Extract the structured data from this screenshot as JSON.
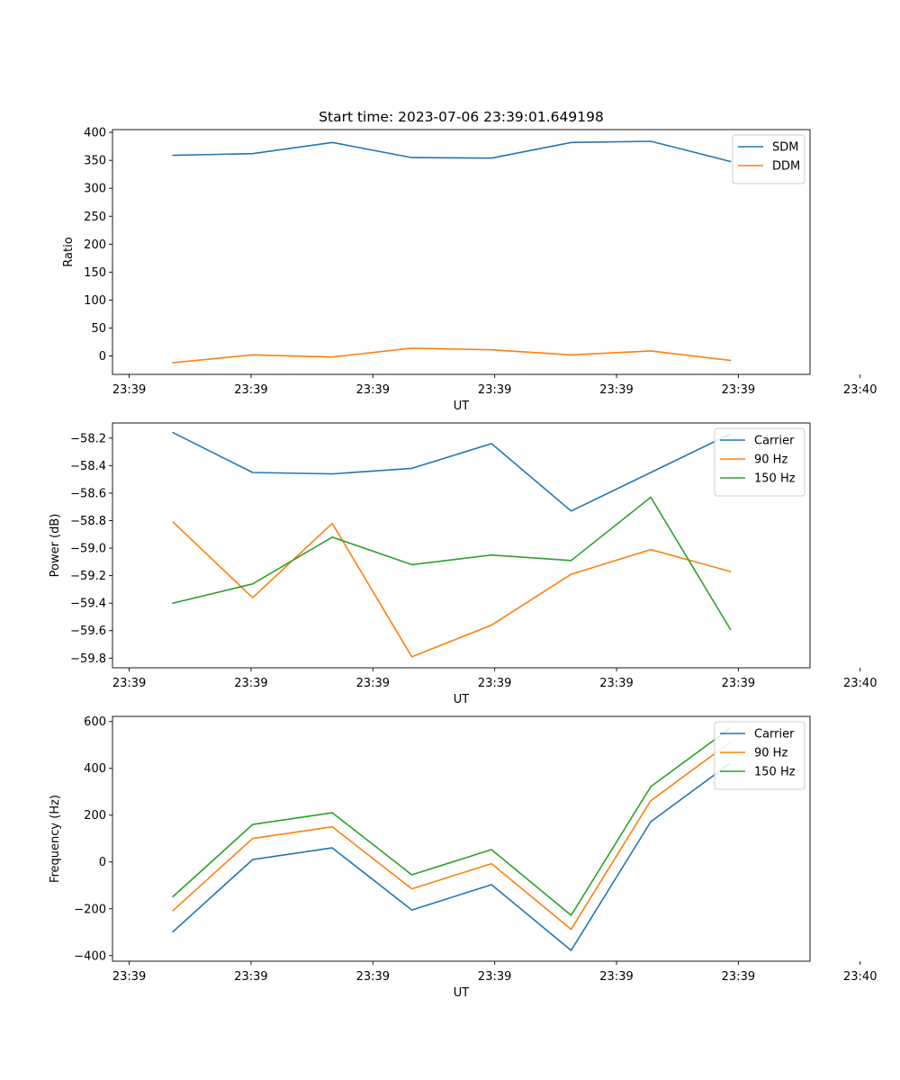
{
  "chart_data": [
    {
      "type": "line",
      "title": "Start time: 2023-07-06 23:39:01.649198",
      "xlabel": "UT",
      "ylabel": "Ratio",
      "legend_loc": "upper right",
      "x": [
        1,
        2,
        3,
        4,
        5,
        6,
        7,
        8
      ],
      "xlim": [
        0.24,
        9.0
      ],
      "ylim": [
        -33,
        405
      ],
      "x_ticks": [
        {
          "value": 0.45,
          "label": "23:39"
        },
        {
          "value": 1.98,
          "label": "23:39"
        },
        {
          "value": 3.51,
          "label": "23:39"
        },
        {
          "value": 5.04,
          "label": "23:39"
        },
        {
          "value": 6.57,
          "label": "23:39"
        },
        {
          "value": 8.1,
          "label": "23:39"
        },
        {
          "value": 9.63,
          "label": "23:40"
        }
      ],
      "y_ticks": [
        {
          "value": 0,
          "label": "0"
        },
        {
          "value": 50,
          "label": "50"
        },
        {
          "value": 100,
          "label": "100"
        },
        {
          "value": 150,
          "label": "150"
        },
        {
          "value": 200,
          "label": "200"
        },
        {
          "value": 250,
          "label": "250"
        },
        {
          "value": 300,
          "label": "300"
        },
        {
          "value": 350,
          "label": "350"
        },
        {
          "value": 400,
          "label": "400"
        }
      ],
      "series": [
        {
          "name": "SDM",
          "color": "#1f77b4",
          "values": [
            359,
            362,
            382,
            355,
            354,
            382,
            384,
            348
          ]
        },
        {
          "name": "DDM",
          "color": "#ff7f0e",
          "values": [
            -12,
            2,
            -2,
            14,
            11,
            2,
            9,
            -8
          ]
        }
      ]
    },
    {
      "type": "line",
      "title": "",
      "xlabel": "UT",
      "ylabel": "Power (dB)",
      "legend_loc": "upper right",
      "x": [
        1,
        2,
        3,
        4,
        5,
        6,
        7,
        8
      ],
      "xlim": [
        0.24,
        9.0
      ],
      "ylim": [
        -59.87,
        -58.09
      ],
      "x_ticks": [
        {
          "value": 0.45,
          "label": "23:39"
        },
        {
          "value": 1.98,
          "label": "23:39"
        },
        {
          "value": 3.51,
          "label": "23:39"
        },
        {
          "value": 5.04,
          "label": "23:39"
        },
        {
          "value": 6.57,
          "label": "23:39"
        },
        {
          "value": 8.1,
          "label": "23:39"
        },
        {
          "value": 9.63,
          "label": "23:40"
        }
      ],
      "y_ticks": [
        {
          "value": -59.8,
          "label": "−59.8"
        },
        {
          "value": -59.6,
          "label": "−59.6"
        },
        {
          "value": -59.4,
          "label": "−59.4"
        },
        {
          "value": -59.2,
          "label": "−59.2"
        },
        {
          "value": -59.0,
          "label": "−59.0"
        },
        {
          "value": -58.8,
          "label": "−58.8"
        },
        {
          "value": -58.6,
          "label": "−58.6"
        },
        {
          "value": -58.4,
          "label": "−58.4"
        },
        {
          "value": -58.2,
          "label": "−58.2"
        }
      ],
      "series": [
        {
          "name": "Carrier",
          "color": "#1f77b4",
          "values": [
            -58.16,
            -58.45,
            -58.46,
            -58.42,
            -58.24,
            -58.73,
            -58.45,
            -58.17
          ]
        },
        {
          "name": "90 Hz",
          "color": "#ff7f0e",
          "values": [
            -58.81,
            -59.36,
            -58.82,
            -59.79,
            -59.56,
            -59.19,
            -59.01,
            -59.17
          ]
        },
        {
          "name": "150 Hz",
          "color": "#2ca02c",
          "values": [
            -59.4,
            -59.26,
            -58.92,
            -59.12,
            -59.05,
            -59.09,
            -58.63,
            -59.59
          ]
        }
      ]
    },
    {
      "type": "line",
      "title": "",
      "xlabel": "UT",
      "ylabel": "Frequency (Hz)",
      "legend_loc": "upper right",
      "x": [
        1,
        2,
        3,
        4,
        5,
        6,
        7,
        8
      ],
      "xlim": [
        0.24,
        9.0
      ],
      "ylim": [
        -424,
        622
      ],
      "x_ticks": [
        {
          "value": 0.45,
          "label": "23:39"
        },
        {
          "value": 1.98,
          "label": "23:39"
        },
        {
          "value": 3.51,
          "label": "23:39"
        },
        {
          "value": 5.04,
          "label": "23:39"
        },
        {
          "value": 6.57,
          "label": "23:39"
        },
        {
          "value": 8.1,
          "label": "23:39"
        },
        {
          "value": 9.63,
          "label": "23:40"
        }
      ],
      "y_ticks": [
        {
          "value": -400,
          "label": "−400"
        },
        {
          "value": -200,
          "label": "−200"
        },
        {
          "value": 0,
          "label": "0"
        },
        {
          "value": 200,
          "label": "200"
        },
        {
          "value": 400,
          "label": "400"
        },
        {
          "value": 600,
          "label": "600"
        }
      ],
      "series": [
        {
          "name": "Carrier",
          "color": "#1f77b4",
          "values": [
            -298,
            10,
            60,
            -205,
            -97,
            -378,
            172,
            422
          ]
        },
        {
          "name": "90 Hz",
          "color": "#ff7f0e",
          "values": [
            -208,
            100,
            150,
            -115,
            -7,
            -288,
            262,
            512
          ]
        },
        {
          "name": "150 Hz",
          "color": "#2ca02c",
          "values": [
            -148,
            160,
            210,
            -55,
            53,
            -228,
            322,
            572
          ]
        }
      ]
    }
  ]
}
